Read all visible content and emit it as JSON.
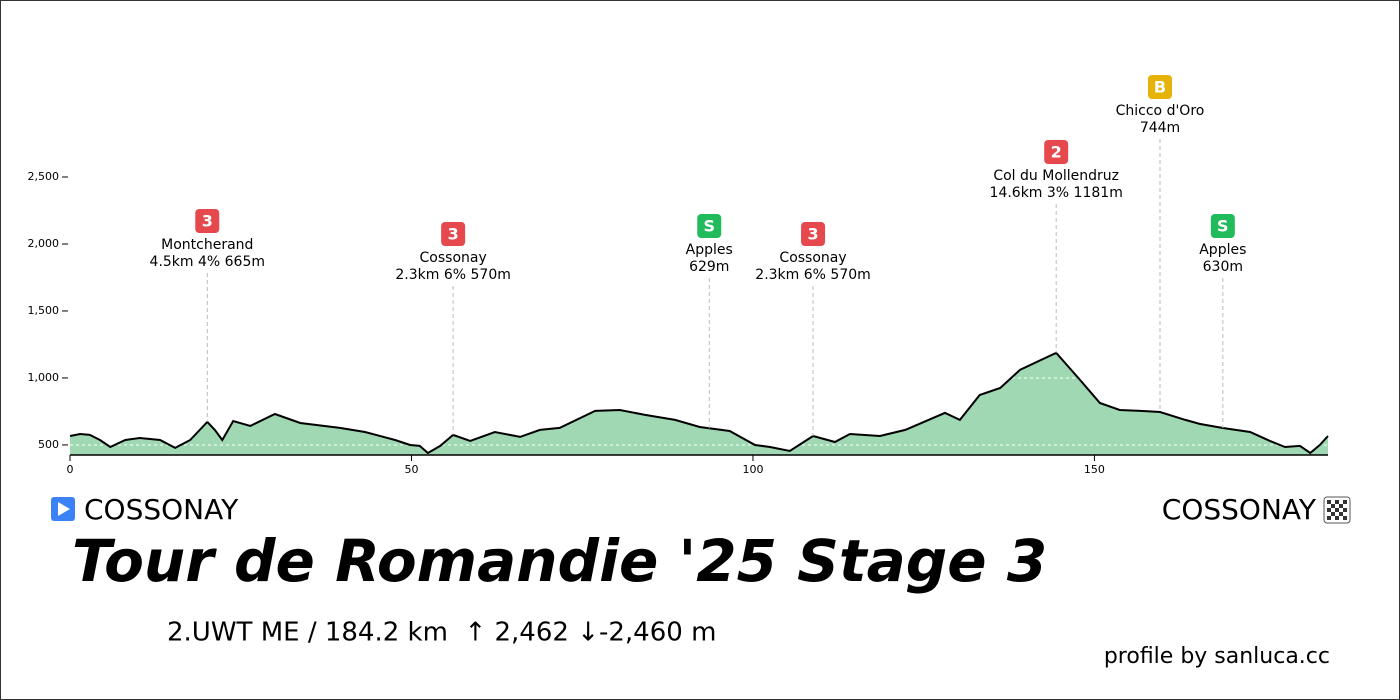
{
  "chart_data": {
    "type": "area",
    "title": "Tour de Romandie '25 Stage 3",
    "subtitle": "2.UWT ME / 184.2 km  ↑ 2,462 ↓-2,460 m",
    "start": "COSSONAY",
    "finish": "COSSONAY",
    "credit": "profile by sanluca.cc",
    "color": "#9fd8b2",
    "line_color": "#000000",
    "grid": true,
    "x": [
      0,
      1.5,
      2.9,
      4.4,
      5.9,
      8.1,
      10.2,
      13.2,
      15.4,
      17.6,
      20.1,
      21.2,
      22.3,
      23.9,
      26.4,
      30.0,
      33.7,
      39.5,
      43.2,
      47.6,
      49.8,
      51.2,
      52.4,
      54.2,
      56.1,
      58.6,
      62.2,
      65.9,
      68.8,
      71.7,
      76.9,
      80.5,
      84.2,
      88.6,
      92.2,
      96.6,
      100.3,
      102.5,
      105.4,
      108.8,
      112.0,
      114.2,
      118.6,
      122.3,
      128.1,
      130.3,
      133.2,
      136.2,
      139.1,
      144.4,
      147.9,
      150.8,
      153.7,
      156.7,
      159.6,
      163.3,
      165.4,
      168.7,
      172.8,
      175.7,
      177.9,
      180.1,
      181.6,
      183.0,
      184.2
    ],
    "values": [
      567,
      582,
      575,
      537,
      485,
      537,
      552,
      537,
      478,
      537,
      672,
      612,
      537,
      679,
      642,
      731,
      664,
      627,
      597,
      537,
      500,
      493,
      440,
      493,
      575,
      530,
      597,
      560,
      612,
      627,
      754,
      761,
      724,
      687,
      634,
      604,
      500,
      485,
      455,
      567,
      522,
      582,
      567,
      612,
      739,
      687,
      873,
      925,
      1060,
      1187,
      985,
      813,
      761,
      754,
      746,
      687,
      657,
      627,
      597,
      530,
      485,
      493,
      440,
      500,
      567
    ],
    "xlim": [
      0,
      184.2
    ],
    "ylim": [
      425,
      2500
    ],
    "xticks": [
      0,
      50,
      100,
      150
    ],
    "yticks": [
      500,
      {
        "value": 1000,
        "label": "1,000"
      },
      {
        "value": 1500,
        "label": "1,500"
      },
      {
        "value": 2000,
        "label": "2,000"
      },
      {
        "value": 2500,
        "label": "2,500"
      }
    ],
    "annotations": [
      {
        "km": 20.1,
        "badge": "3",
        "color": "#e5484d",
        "name": "Montcherand",
        "details": "4.5km 4% 665m"
      },
      {
        "km": 56.1,
        "badge": "3",
        "color": "#e5484d",
        "name": "Cossonay",
        "details": "2.3km 6% 570m"
      },
      {
        "km": 93.6,
        "badge": "S",
        "color": "#22bb5c",
        "name": "Apples",
        "details": "629m"
      },
      {
        "km": 108.8,
        "badge": "3",
        "color": "#e5484d",
        "name": "Cossonay",
        "details": "2.3km 6% 570m"
      },
      {
        "km": 144.4,
        "badge": "2",
        "color": "#e5484d",
        "name": "Col du Mollendruz",
        "details": "14.6km 3% 1181m"
      },
      {
        "km": 159.6,
        "badge": "B",
        "color": "#e6b30a",
        "name": "Chicco d'Oro",
        "details": "744m"
      },
      {
        "km": 168.8,
        "badge": "S",
        "color": "#22bb5c",
        "name": "Apples",
        "details": "630m"
      }
    ]
  }
}
